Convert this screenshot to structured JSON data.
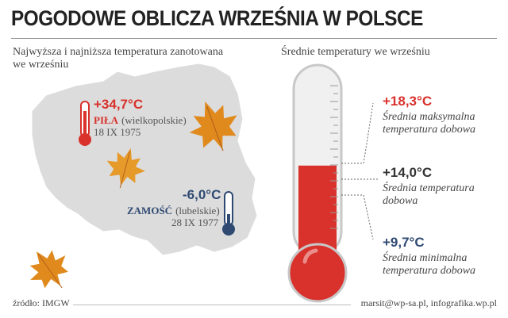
{
  "title": "POGODOWE OBLICZA WRZEŚNIA W POLSCE",
  "left_subtitle_line1": "Najwyższa i najniższa temperatura zanotowana",
  "left_subtitle_line2": "we wrześniu",
  "right_subtitle": "Średnie temperatury we wrześniu",
  "max_record": {
    "value": "+34,7°C",
    "city": "PIŁA",
    "region": "(wielkopolskie)",
    "date": "18 IX 1975"
  },
  "min_record": {
    "value": "-6,0°C",
    "city": "ZAMOŚĆ",
    "region": "(lubelskie)",
    "date": "28 IX 1977"
  },
  "chart_data": {
    "type": "table",
    "title": "Średnie temperatury we wrześniu",
    "unit": "°C",
    "rows": [
      {
        "label_value": "+18,3°C",
        "value": 18.3,
        "desc_line1": "Średnia maksymalna",
        "desc_line2": "temperatura dobowa"
      },
      {
        "label_value": "+14,0°C",
        "value": 14.0,
        "desc_line1": "Średnia temperatura",
        "desc_line2": "dobowa"
      },
      {
        "label_value": "+9,7°C",
        "value": 9.7,
        "desc_line1": "Średnia minimalna",
        "desc_line2": "temperatura dobowa"
      }
    ]
  },
  "footer": {
    "source": "źródło: IMGW",
    "credit": "marsit@wp-sa.pl, infografika.wp.pl"
  },
  "colors": {
    "red": "#d9312b",
    "blue": "#2f4a72",
    "map": "#dcdcdc",
    "leaf": "#e08a1e"
  }
}
